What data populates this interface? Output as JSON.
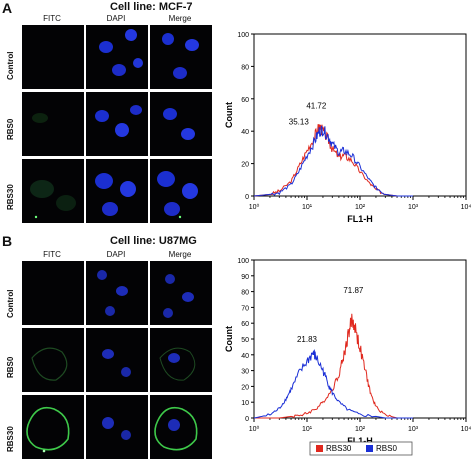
{
  "panels": [
    {
      "letter": "A",
      "cell_line": "Cell line: MCF-7",
      "columns": [
        "FITC",
        "DAPI",
        "Merge"
      ],
      "rows": [
        "Control",
        "RBS0",
        "RBS30"
      ]
    },
    {
      "letter": "B",
      "cell_line": "Cell line: U87MG",
      "columns": [
        "FITC",
        "DAPI",
        "Merge"
      ],
      "rows": [
        "Control",
        "RBS0",
        "RBS30"
      ]
    }
  ],
  "chart_data": [
    {
      "type": "line",
      "title": "",
      "xlabel": "FL1-H",
      "ylabel": "Count",
      "x_scale": "log",
      "xlim": [
        1,
        10000
      ],
      "ylim": [
        0,
        100
      ],
      "yticks": [
        0,
        20,
        40,
        60,
        80,
        100
      ],
      "xticks": [
        "10⁰",
        "10¹",
        "10²",
        "10³",
        "10⁴"
      ],
      "annotations": [
        "35.13",
        "41.72"
      ],
      "series": [
        {
          "name": "RBS30",
          "color": "#e0281e",
          "x": [
            1,
            2,
            3,
            5,
            7,
            10,
            14,
            17,
            20,
            25,
            30,
            40,
            50,
            70,
            100,
            150,
            200,
            300,
            500,
            1000
          ],
          "y": [
            0,
            1,
            3,
            9,
            18,
            28,
            37,
            43,
            40,
            35,
            29,
            24,
            25,
            22,
            15,
            8,
            4,
            1,
            0,
            0
          ]
        },
        {
          "name": "RBS0",
          "color": "#1a2fd6",
          "x": [
            1,
            2,
            3,
            5,
            7,
            10,
            14,
            17,
            20,
            25,
            30,
            40,
            50,
            70,
            100,
            150,
            200,
            300,
            500,
            1000
          ],
          "y": [
            0,
            1,
            2,
            7,
            15,
            25,
            34,
            40,
            41,
            37,
            32,
            27,
            28,
            25,
            18,
            10,
            5,
            1,
            0,
            0
          ]
        }
      ]
    },
    {
      "type": "line",
      "title": "",
      "xlabel": "FL1-H",
      "ylabel": "Count",
      "x_scale": "log",
      "xlim": [
        1,
        10000
      ],
      "ylim": [
        0,
        100
      ],
      "yticks": [
        0,
        10,
        20,
        30,
        40,
        50,
        60,
        70,
        80,
        90,
        100
      ],
      "xticks": [
        "10⁰",
        "10¹",
        "10²",
        "10³",
        "10⁴"
      ],
      "annotations": [
        "21.83",
        "71.87"
      ],
      "legend": [
        "RBS30",
        "RBS0"
      ],
      "legend_position": "bottom",
      "series": [
        {
          "name": "RBS30",
          "color": "#e0281e",
          "x": [
            1,
            3,
            5,
            8,
            10,
            15,
            20,
            30,
            40,
            50,
            60,
            70,
            80,
            100,
            130,
            160,
            200,
            300,
            500,
            1000
          ],
          "y": [
            0,
            0,
            1,
            2,
            3,
            6,
            10,
            18,
            28,
            40,
            53,
            62,
            58,
            44,
            28,
            15,
            7,
            2,
            0,
            0
          ]
        },
        {
          "name": "RBS0",
          "color": "#1a2fd6",
          "x": [
            1,
            2,
            3,
            4,
            5,
            7,
            10,
            13,
            15,
            20,
            25,
            30,
            40,
            60,
            100,
            200,
            300,
            500,
            1000
          ],
          "y": [
            0,
            2,
            6,
            12,
            18,
            28,
            36,
            41,
            38,
            30,
            22,
            16,
            10,
            5,
            2,
            1,
            0,
            0,
            0
          ]
        }
      ]
    }
  ]
}
